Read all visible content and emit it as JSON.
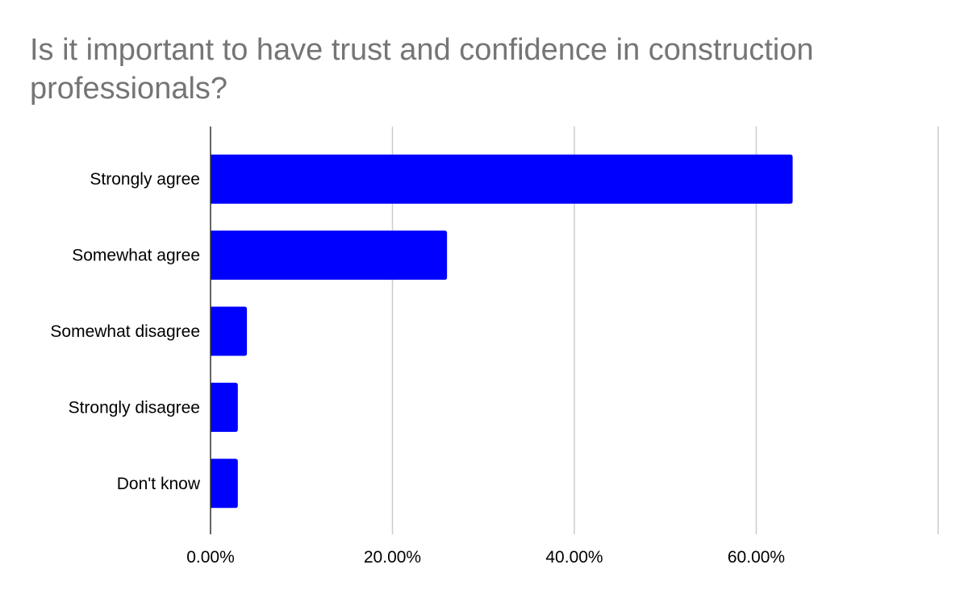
{
  "chart_data": {
    "type": "bar",
    "orientation": "horizontal",
    "title": "Is it important to have trust and confidence in construction professionals?",
    "categories": [
      "Strongly agree",
      "Somewhat agree",
      "Somewhat disagree",
      "Strongly disagree",
      "Don't know"
    ],
    "values": [
      64.0,
      26.0,
      4.0,
      3.0,
      3.0
    ],
    "xlim": [
      0,
      80
    ],
    "x_ticks": [
      0,
      20,
      40,
      60,
      80
    ],
    "x_tick_labels": [
      "0.00%",
      "20.00%",
      "40.00%",
      "60.00%",
      ""
    ],
    "xlabel": "",
    "ylabel": "",
    "grid": true,
    "legend": "none",
    "bar_color": "#0000ff",
    "grid_color": "#cccccc",
    "axis_color": "#333333",
    "title_color": "#757575"
  }
}
